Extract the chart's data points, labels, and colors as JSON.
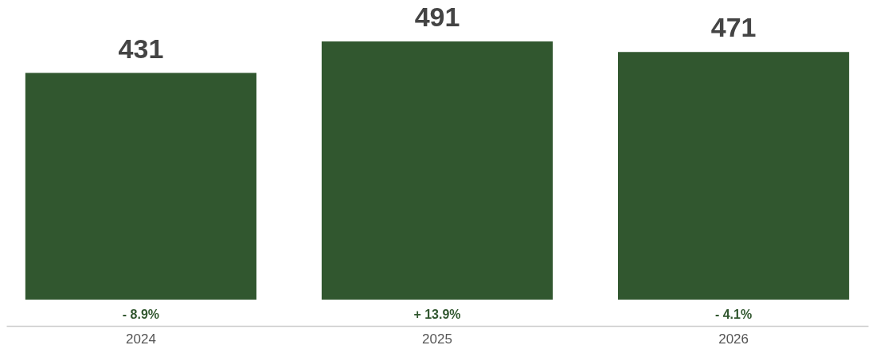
{
  "chart_data": {
    "type": "bar",
    "categories": [
      "2024",
      "2025",
      "2026"
    ],
    "values": [
      431,
      491,
      471
    ],
    "color": "#31572f",
    "data_labels": true,
    "annotations": [
      "- 8.9%",
      "+ 13.9%",
      "- 4.1%"
    ]
  }
}
